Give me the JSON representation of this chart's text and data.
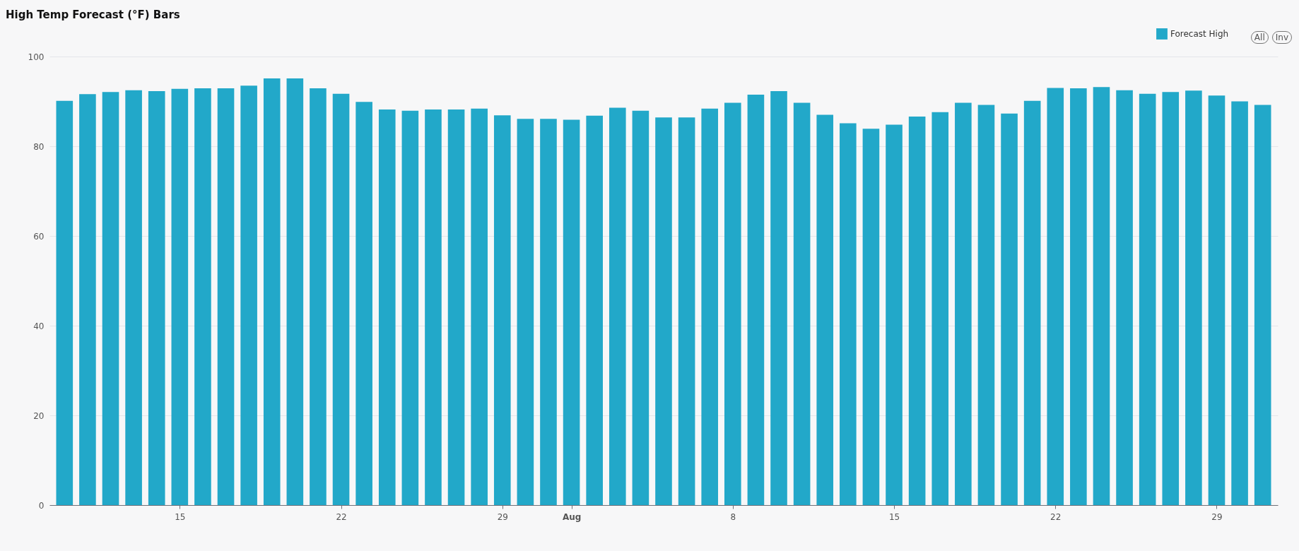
{
  "chart_data": {
    "type": "bar",
    "title": "High Temp Forecast (°F) Bars",
    "x": [
      "--07-10",
      "--07-11",
      "--07-12",
      "--07-13",
      "--07-14",
      "--07-15",
      "--07-16",
      "--07-17",
      "--07-18",
      "--07-19",
      "--07-20",
      "--07-21",
      "--07-22",
      "--07-23",
      "--07-24",
      "--07-25",
      "--07-26",
      "--07-27",
      "--07-28",
      "--07-29",
      "--07-30",
      "--07-31",
      "--08-01",
      "--08-02",
      "--08-03",
      "--08-04",
      "--08-05",
      "--08-06",
      "--08-07",
      "--08-08",
      "--08-09",
      "--08-10",
      "--08-11",
      "--08-12",
      "--08-13",
      "--08-14",
      "--08-15",
      "--08-16",
      "--08-17",
      "--08-18",
      "--08-19",
      "--08-20",
      "--08-21",
      "--08-22",
      "--08-23",
      "--08-24",
      "--08-25",
      "--08-26",
      "--08-27",
      "--08-28",
      "--08-29",
      "--08-30",
      "--08-31"
    ],
    "series": [
      {
        "name": "Forecast High",
        "color": "#22a8c9",
        "values": [
          90.1,
          91.6,
          92.1,
          92.5,
          92.3,
          92.8,
          92.9,
          92.9,
          93.5,
          95.1,
          95.1,
          92.9,
          91.7,
          89.9,
          88.2,
          87.9,
          88.2,
          88.2,
          88.4,
          86.9,
          86.1,
          86.1,
          85.9,
          86.8,
          88.6,
          87.9,
          86.4,
          86.4,
          88.4,
          89.7,
          91.5,
          92.3,
          89.7,
          87.0,
          85.1,
          83.9,
          84.8,
          86.6,
          87.6,
          89.7,
          89.2,
          87.3,
          90.1,
          93.0,
          92.9,
          93.2,
          92.5,
          91.7,
          92.1,
          92.4,
          91.3,
          90.0,
          89.2
        ]
      }
    ],
    "xlim": [
      "--07-09T12:00",
      "--08-31T12:00"
    ],
    "xticks": [
      {
        "value": "--07-15",
        "label": "15"
      },
      {
        "value": "--07-22",
        "label": "22"
      },
      {
        "value": "--07-29",
        "label": "29"
      },
      {
        "value": "--08-01",
        "label": "Aug"
      },
      {
        "value": "--08-08",
        "label": "8"
      },
      {
        "value": "--08-15",
        "label": "15"
      },
      {
        "value": "--08-22",
        "label": "22"
      },
      {
        "value": "--08-29",
        "label": "29"
      }
    ],
    "ylim": [
      0,
      100
    ],
    "yticks": [
      0,
      20,
      40,
      60,
      80,
      100
    ],
    "grid": "y",
    "legend": "top right",
    "annotations": [
      "All",
      "Inv"
    ]
  }
}
